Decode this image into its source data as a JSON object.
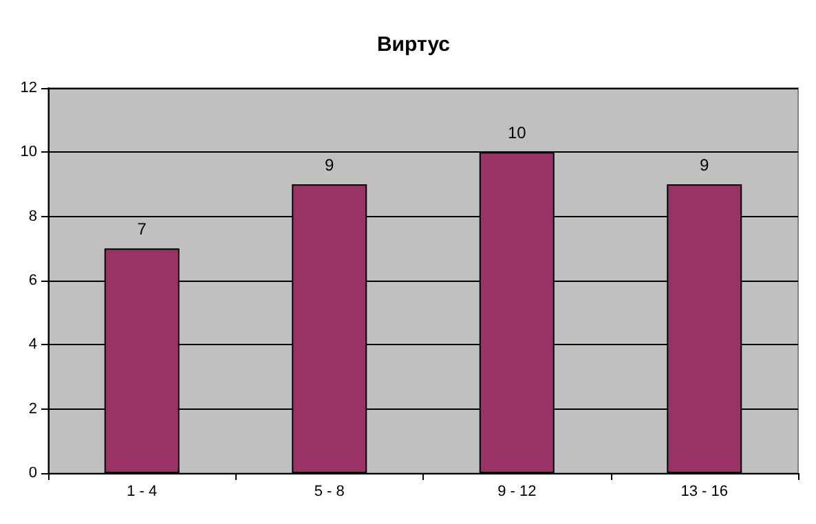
{
  "chart_data": {
    "type": "bar",
    "title": "Виртус",
    "categories": [
      "1 - 4",
      "5 - 8",
      "9 - 12",
      "13 - 16"
    ],
    "values": [
      7,
      9,
      10,
      9
    ],
    "color": "#993366",
    "ylim": [
      0,
      12
    ],
    "yticks": [
      0,
      2,
      4,
      6,
      8,
      10,
      12
    ],
    "grid": "y",
    "data_labels": true
  }
}
